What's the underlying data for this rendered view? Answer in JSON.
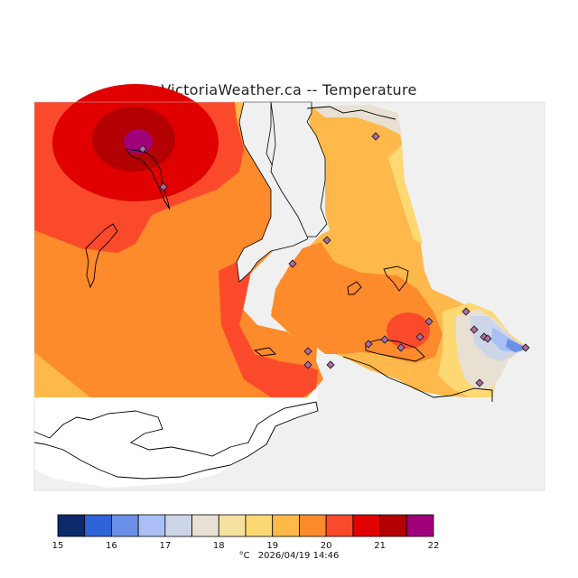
{
  "title": "VictoriaWeather.ca -- Temperature",
  "legend": {
    "unit": "°C",
    "ticks": [
      "15",
      "16",
      "17",
      "18",
      "19",
      "20",
      "21",
      "22"
    ],
    "colors": [
      "#0b2a6b",
      "#2f63d8",
      "#6a8fe6",
      "#a9bff5",
      "#cdd5e8",
      "#e8e0d2",
      "#f5e1a0",
      "#fed873",
      "#feb94a",
      "#fd8a2b",
      "#fb4a2b",
      "#e00000",
      "#b30000",
      "#a0007a"
    ]
  },
  "timestamp": "2026/04/19 14:46",
  "colors": {
    "land_outside": "#f0f0f0",
    "water_blank": "#ffffff",
    "coast": "#000000",
    "station": "#b06aa8"
  }
}
